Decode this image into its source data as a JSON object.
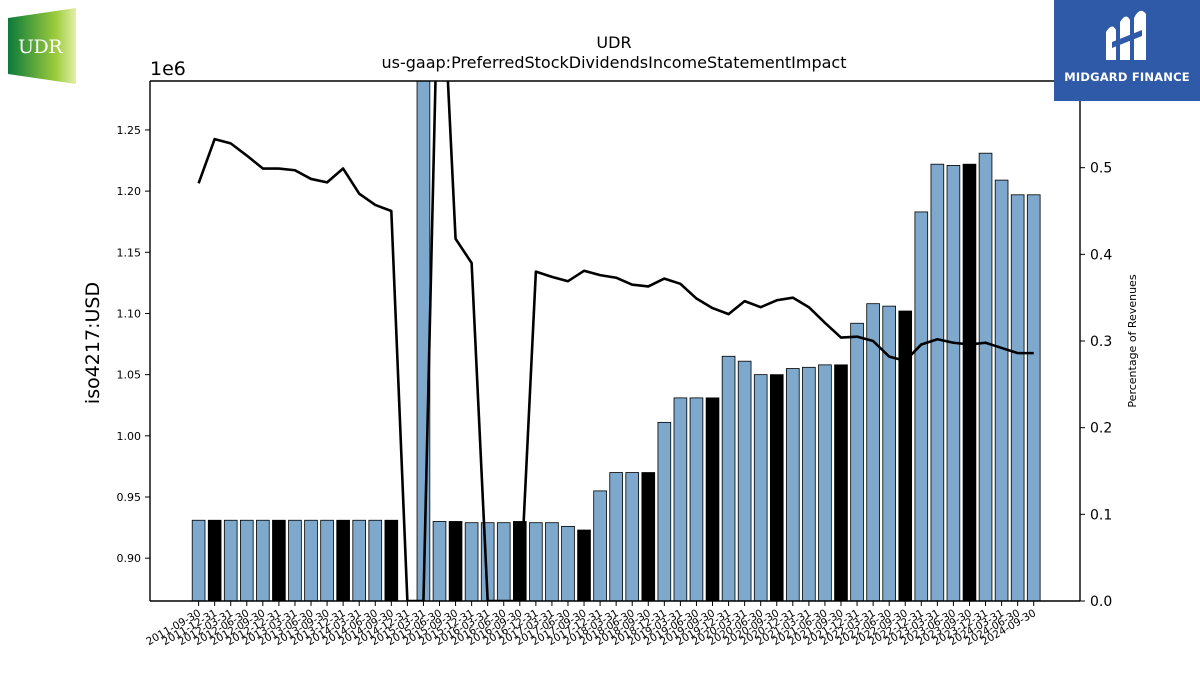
{
  "logos": {
    "left": {
      "text": "UDR",
      "colors": [
        "#0a7a3a",
        "#9ccb3b",
        "#e3f0a8"
      ]
    },
    "right": {
      "text": "MIDGARD FINANCE",
      "color": "#2f5aa8"
    }
  },
  "chart_data": {
    "type": "bar",
    "title": "UDR",
    "subtitle": "us-gaap:PreferredStockDividendsIncomeStatementImpact",
    "ylabel": "iso4217:USD",
    "y2label": "Percentage of Revenues",
    "y_scale_label": "1e6",
    "ylim": [
      0.865,
      1.29
    ],
    "y2lim": [
      0.0,
      0.6
    ],
    "yticks": [
      "0.90",
      "0.95",
      "1.00",
      "1.05",
      "1.10",
      "1.15",
      "1.20",
      "1.25"
    ],
    "y2ticks": [
      "0.0",
      "0.1",
      "0.2",
      "0.3",
      "0.4",
      "0.5",
      "0.6"
    ],
    "grid": false,
    "categories": [
      "2011-09-30",
      "2011-12-31",
      "2012-03-31",
      "2012-06-30",
      "2012-09-30",
      "2012-12-31",
      "2013-03-31",
      "2013-06-30",
      "2013-09-30",
      "2013-12-31",
      "2014-03-31",
      "2014-06-30",
      "2014-09-30",
      "2014-12-31",
      "2015-03-31",
      "2015-06-30",
      "2015-09-30",
      "2015-12-31",
      "2016-03-31",
      "2016-06-30",
      "2016-09-30",
      "2016-12-31",
      "2017-03-31",
      "2017-06-30",
      "2017-09-30",
      "2017-12-31",
      "2018-03-31",
      "2018-06-30",
      "2018-09-30",
      "2018-12-31",
      "2019-03-31",
      "2019-06-30",
      "2019-09-30",
      "2019-12-31",
      "2020-03-31",
      "2020-06-30",
      "2020-09-30",
      "2020-12-31",
      "2021-03-31",
      "2021-06-30",
      "2021-09-30",
      "2021-12-31",
      "2022-03-31",
      "2022-06-30",
      "2022-09-30",
      "2022-12-31",
      "2023-03-31",
      "2023-06-30",
      "2023-09-30",
      "2023-12-31",
      "2024-03-31",
      "2024-06-30",
      "2024-09-30"
    ],
    "series": [
      {
        "type": "bar",
        "values": [
          931000,
          931000,
          931000,
          931000,
          931000,
          931000,
          931000,
          931000,
          931000,
          931000,
          931000,
          931000,
          931000,
          0,
          1900000,
          930000,
          930000,
          929000,
          929000,
          929000,
          930000,
          929000,
          929000,
          926000,
          923000,
          955000,
          970000,
          970000,
          970000,
          1011000,
          1031000,
          1031000,
          1031000,
          1065000,
          1061000,
          1050000,
          1050000,
          1055000,
          1056000,
          1058000,
          1058000,
          1092000,
          1108000,
          1106000,
          1102000,
          1183000,
          1222000,
          1221000,
          1222000,
          1231000,
          1209000,
          1197000,
          1197000
        ],
        "highlight": [
          false,
          true,
          false,
          false,
          false,
          true,
          false,
          false,
          false,
          true,
          false,
          false,
          true,
          false,
          false,
          false,
          true,
          false,
          false,
          false,
          true,
          false,
          false,
          false,
          true,
          false,
          false,
          false,
          true,
          false,
          false,
          false,
          true,
          false,
          false,
          false,
          true,
          false,
          false,
          false,
          true,
          false,
          false,
          false,
          true,
          false,
          false,
          false,
          true,
          false,
          false,
          false,
          false
        ],
        "color": "#7ea8cc",
        "highlight_color": "#000000"
      },
      {
        "type": "line",
        "axis": "y2",
        "values": [
          0.482,
          0.533,
          0.528,
          0.514,
          0.499,
          0.499,
          0.497,
          0.487,
          0.483,
          0.499,
          0.47,
          0.457,
          0.45,
          0.0,
          0.0,
          0.8,
          0.418,
          0.39,
          0.0,
          0.0,
          0.0,
          0.38,
          0.374,
          0.369,
          0.381,
          0.376,
          0.373,
          0.365,
          0.363,
          0.372,
          0.366,
          0.349,
          0.338,
          0.331,
          0.346,
          0.339,
          0.347,
          0.35,
          0.339,
          0.321,
          0.304,
          0.305,
          0.3,
          0.282,
          0.277,
          0.296,
          0.302,
          0.298,
          0.296,
          0.298,
          0.292,
          0.286,
          0.286
        ],
        "color": "#000000"
      }
    ]
  }
}
